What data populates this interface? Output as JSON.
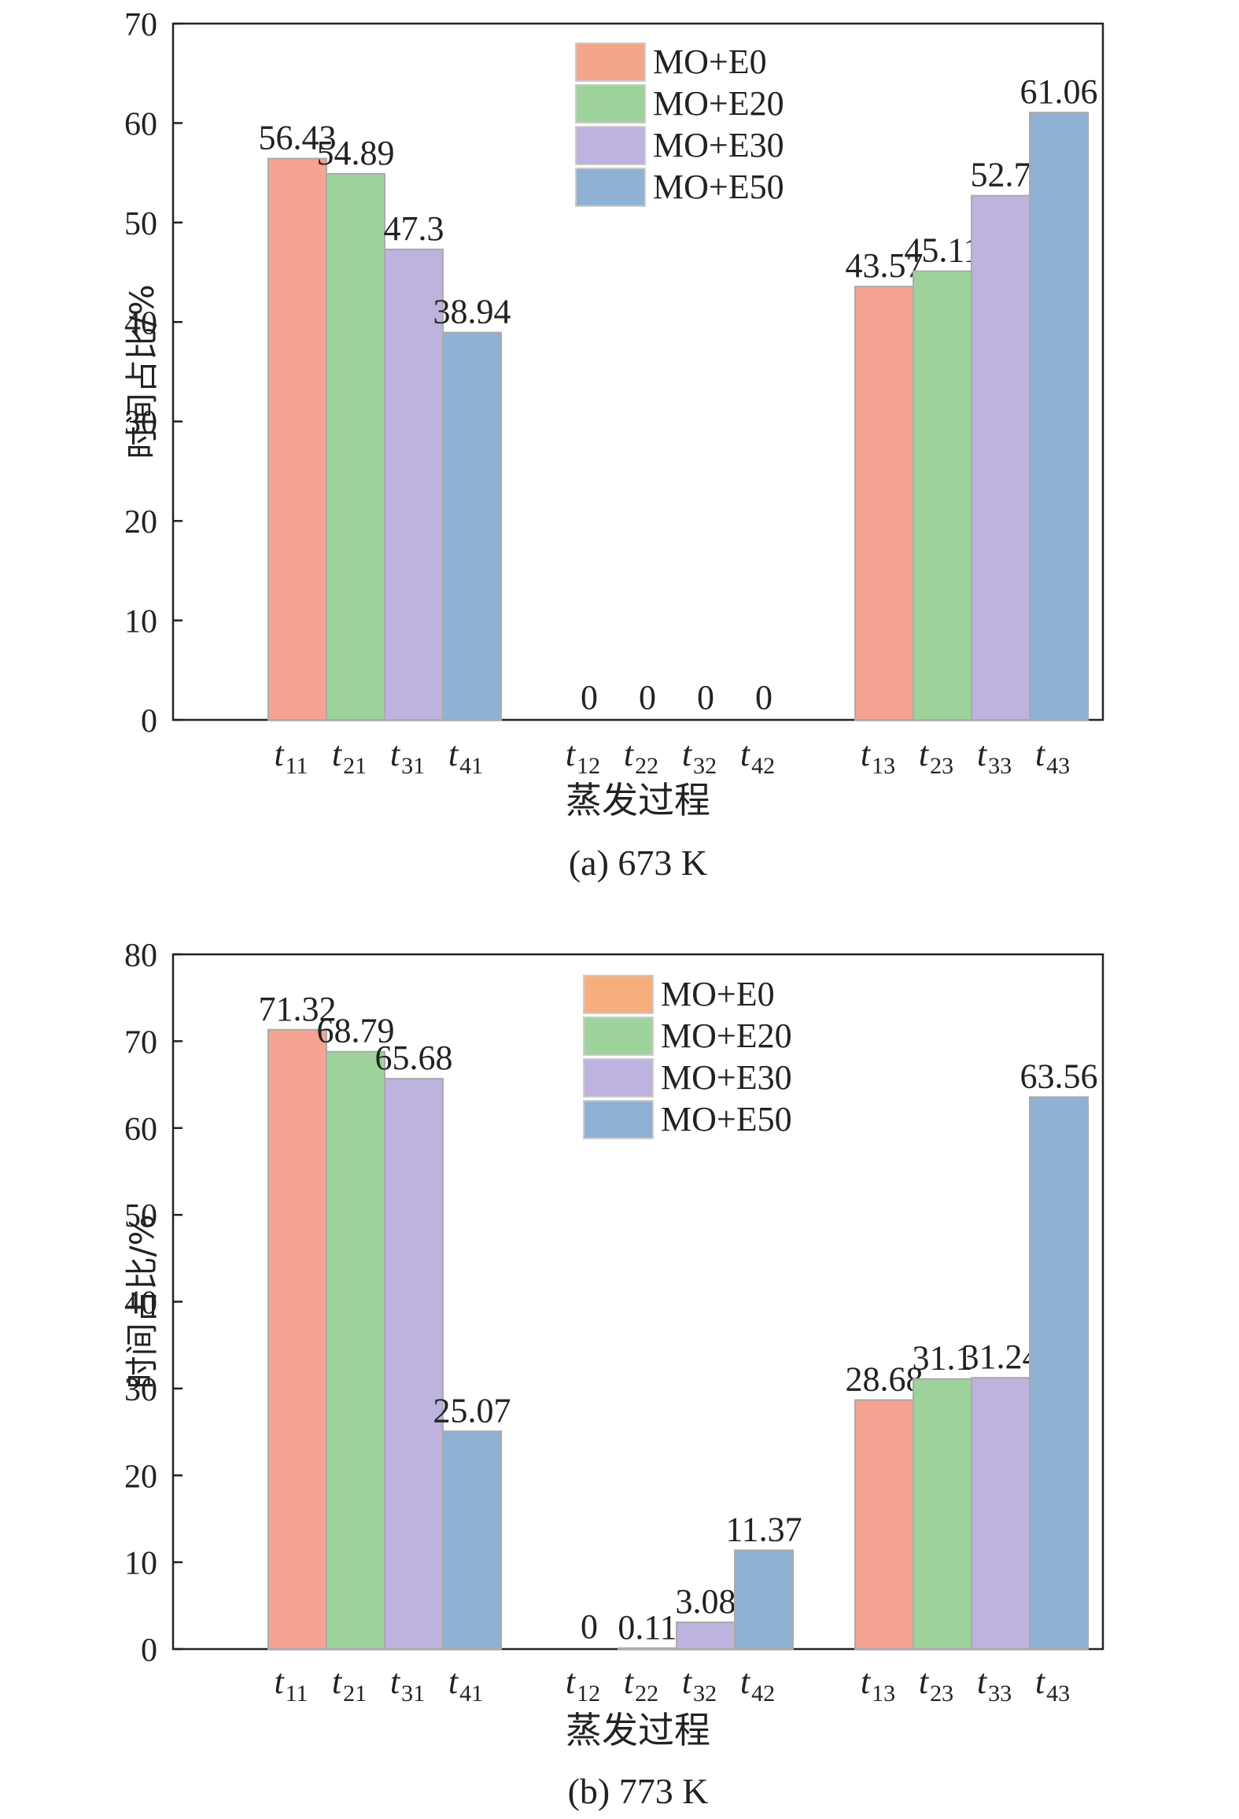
{
  "chart_data": [
    {
      "type": "bar",
      "caption": "(a) 673 K",
      "xlabel": "蒸发过程",
      "ylabel": "时间占比/%",
      "ylim": [
        0,
        70
      ],
      "yticks": [
        0,
        10,
        20,
        30,
        40,
        50,
        60,
        70
      ],
      "legend_position": "top-center",
      "categories": [
        {
          "main": "t",
          "sub": "11"
        },
        {
          "main": "t",
          "sub": "21"
        },
        {
          "main": "t",
          "sub": "31"
        },
        {
          "main": "t",
          "sub": "41"
        },
        {
          "main": "t",
          "sub": "12"
        },
        {
          "main": "t",
          "sub": "22"
        },
        {
          "main": "t",
          "sub": "32"
        },
        {
          "main": "t",
          "sub": "42"
        },
        {
          "main": "t",
          "sub": "13"
        },
        {
          "main": "t",
          "sub": "23"
        },
        {
          "main": "t",
          "sub": "33"
        },
        {
          "main": "t",
          "sub": "43"
        }
      ],
      "values": [
        56.43,
        54.89,
        47.3,
        38.94,
        0,
        0,
        0,
        0,
        43.57,
        45.11,
        52.7,
        61.06
      ],
      "value_labels": [
        "56.43",
        "54.89",
        "47.3",
        "38.94",
        "0",
        "0",
        "0",
        "0",
        "43.57",
        "45.11",
        "52.7",
        "61.06"
      ],
      "series": [
        {
          "name": "MO+E0",
          "color": "#f4a491",
          "legend_color": "#f4a688"
        },
        {
          "name": "MO+E20",
          "color": "#9dd39b",
          "legend_color": "#9dd39b"
        },
        {
          "name": "MO+E30",
          "color": "#bdb3de",
          "legend_color": "#bdb3de"
        },
        {
          "name": "MO+E50",
          "color": "#8fb1d3",
          "legend_color": "#8fb1d3"
        }
      ]
    },
    {
      "type": "bar",
      "caption": "(b) 773 K",
      "xlabel": "蒸发过程",
      "ylabel": "时间占比/%",
      "ylim": [
        0,
        80
      ],
      "yticks": [
        0,
        10,
        20,
        30,
        40,
        50,
        60,
        70,
        80
      ],
      "legend_position": "top-center",
      "categories": [
        {
          "main": "t",
          "sub": "11"
        },
        {
          "main": "t",
          "sub": "21"
        },
        {
          "main": "t",
          "sub": "31"
        },
        {
          "main": "t",
          "sub": "41"
        },
        {
          "main": "t",
          "sub": "12"
        },
        {
          "main": "t",
          "sub": "22"
        },
        {
          "main": "t",
          "sub": "32"
        },
        {
          "main": "t",
          "sub": "42"
        },
        {
          "main": "t",
          "sub": "13"
        },
        {
          "main": "t",
          "sub": "23"
        },
        {
          "main": "t",
          "sub": "33"
        },
        {
          "main": "t",
          "sub": "43"
        }
      ],
      "values": [
        71.32,
        68.79,
        65.68,
        25.07,
        0,
        0.11,
        3.08,
        11.37,
        28.68,
        31.1,
        31.24,
        63.56
      ],
      "value_labels": [
        "71.32",
        "68.79",
        "65.68",
        "25.07",
        "0",
        "0.11",
        "3.08",
        "11.37",
        "28.68",
        "31.1",
        "31.24",
        "63.56"
      ],
      "series": [
        {
          "name": "MO+E0",
          "color": "#f4a491",
          "legend_color": "#f8ad7d"
        },
        {
          "name": "MO+E20",
          "color": "#9dd39b",
          "legend_color": "#9dd39b"
        },
        {
          "name": "MO+E30",
          "color": "#bdb3de",
          "legend_color": "#bdb3de"
        },
        {
          "name": "MO+E50",
          "color": "#8fb1d3",
          "legend_color": "#8fb1d3"
        }
      ]
    }
  ]
}
